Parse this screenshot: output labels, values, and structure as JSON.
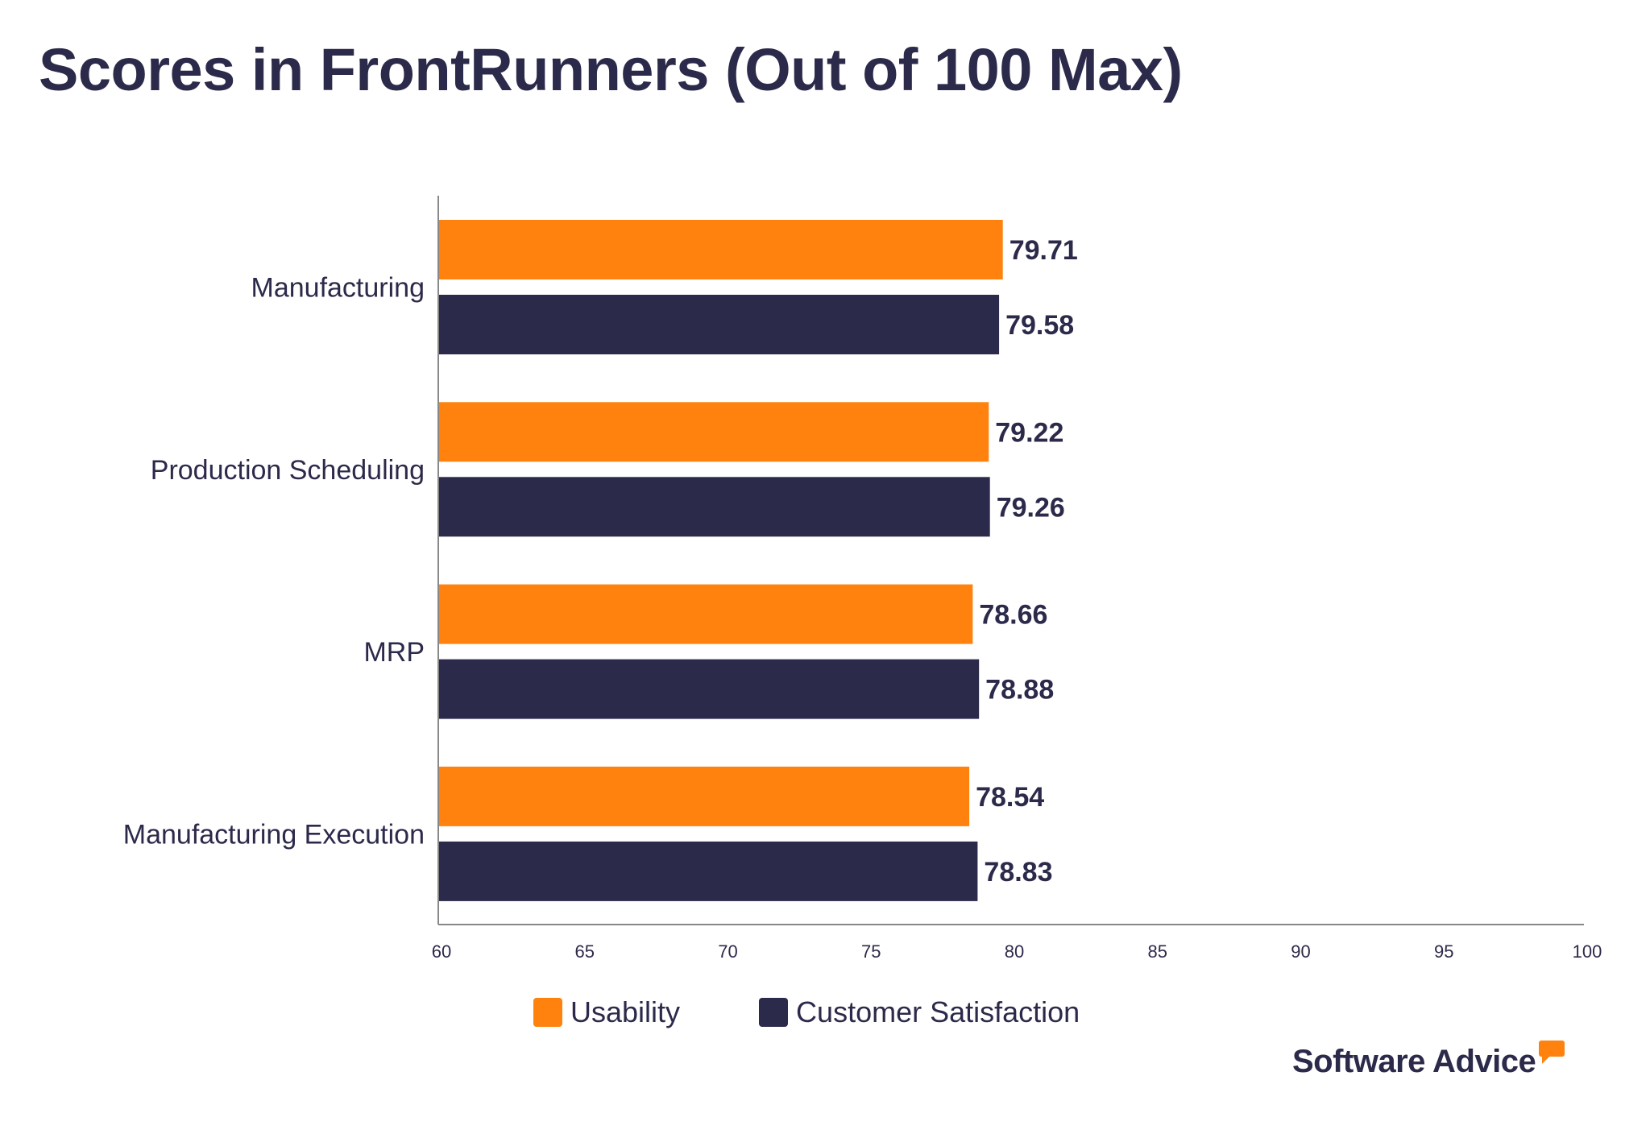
{
  "chart_data": {
    "type": "bar",
    "orientation": "horizontal",
    "title": "Scores in FrontRunners (Out of 100 Max)",
    "categories": [
      "Manufacturing",
      "Production Scheduling",
      "MRP",
      "Manufacturing Execution"
    ],
    "series": [
      {
        "name": "Usability",
        "color": "#ff820f",
        "values": [
          79.71,
          79.22,
          78.66,
          78.54
        ]
      },
      {
        "name": "Customer Satisfaction",
        "color": "#2c2a4a",
        "values": [
          79.58,
          79.26,
          78.88,
          78.83
        ]
      }
    ],
    "xlim": [
      60,
      100
    ],
    "xticks": [
      "60",
      "65",
      "70",
      "75",
      "80",
      "85",
      "90",
      "95",
      "100"
    ],
    "grid": false,
    "legend": "bottom",
    "data_labels": true
  },
  "logo": {
    "text": "Software Advice",
    "accent": "#ff820f"
  }
}
